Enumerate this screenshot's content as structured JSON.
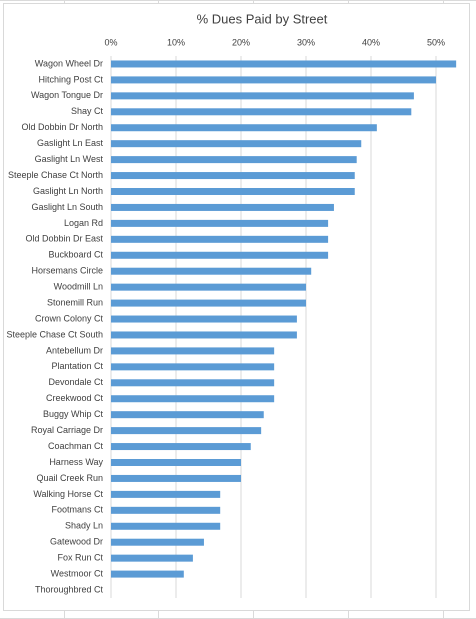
{
  "chart_data": {
    "type": "bar",
    "orientation": "horizontal",
    "title": "% Dues Paid by Street",
    "categories": [
      "Wagon Wheel Dr",
      "Hitching Post Ct",
      "Wagon Tongue Dr",
      "Shay Ct",
      "Old Dobbin Dr North",
      "Gaslight Ln East",
      "Gaslight Ln West",
      "Steeple Chase Ct North",
      "Gaslight Ln North",
      "Gaslight Ln South",
      "Logan Rd",
      "Old Dobbin Dr East",
      "Buckboard Ct",
      "Horsemans Circle",
      "Woodmill Ln",
      "Stonemill Run",
      "Crown Colony Ct",
      "Steeple Chase Ct South",
      "Antebellum Dr",
      "Plantation Ct",
      "Devondale Ct",
      "Creekwood Ct",
      "Buggy Whip Ct",
      "Royal Carriage Dr",
      "Coachman Ct",
      "Harness Way",
      "Quail Creek Run",
      "Walking Horse Ct",
      "Footmans Ct",
      "Shady Ln",
      "Gatewood Dr",
      "Fox Run Ct",
      "Westmoor Ct",
      "Thoroughbred Ct"
    ],
    "values": [
      53.1,
      50,
      46.6,
      46.2,
      40.9,
      38.5,
      37.8,
      37.5,
      37.5,
      34.3,
      33.4,
      33.4,
      33.4,
      30.8,
      30,
      30,
      28.6,
      28.6,
      25.1,
      25.1,
      25.1,
      25.1,
      23.5,
      23.1,
      21.5,
      20,
      20,
      16.8,
      16.8,
      16.8,
      14.3,
      12.6,
      11.2,
      0
    ],
    "color": "#5b9bd5",
    "xlim": [
      0,
      54
    ],
    "xticks": [
      {
        "value": 0,
        "label": "0%"
      },
      {
        "value": 10,
        "label": "10%"
      },
      {
        "value": 20,
        "label": "20%"
      },
      {
        "value": 30,
        "label": "30%"
      },
      {
        "value": 40,
        "label": "40%"
      },
      {
        "value": 50,
        "label": "50%"
      }
    ],
    "grid": true
  }
}
